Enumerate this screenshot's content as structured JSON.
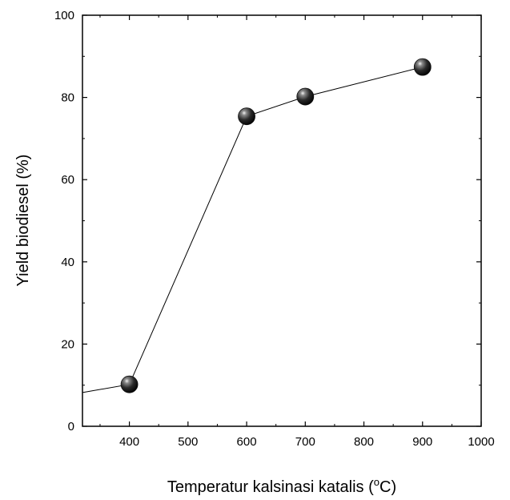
{
  "chart_data": {
    "type": "line",
    "xlabel_main": "Temperatur kalsinasi katalis (",
    "xlabel_sup": "o",
    "xlabel_tail": "C)",
    "ylabel": "Yield biodiesel (%)",
    "xlim": [
      320,
      1000
    ],
    "ylim": [
      0,
      100
    ],
    "x_ticks": [
      400,
      500,
      600,
      700,
      800,
      900,
      1000
    ],
    "y_ticks": [
      0,
      20,
      40,
      60,
      80,
      100
    ],
    "grid": false,
    "line_extends_from_x": 320,
    "line_extends_from_y": 8.2,
    "series": [
      {
        "x": [
          400,
          600,
          700,
          900
        ],
        "y": [
          10.2,
          75.4,
          80.2,
          87.4
        ],
        "marker": "sphere",
        "color": "#2b2b2b"
      }
    ]
  }
}
